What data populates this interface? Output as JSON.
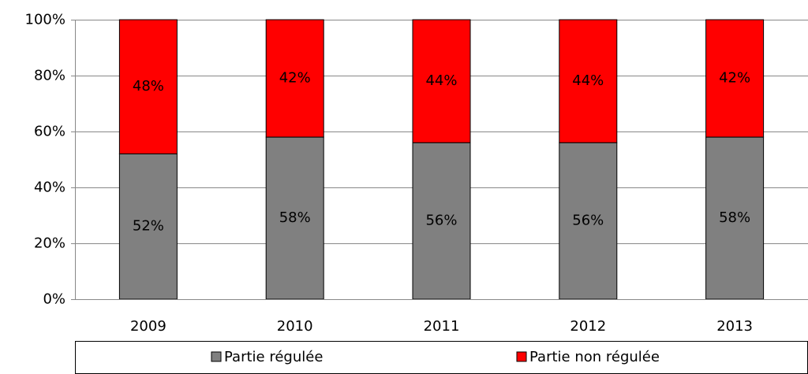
{
  "chart_data": {
    "type": "stacked_bar",
    "categories": [
      "2009",
      "2010",
      "2011",
      "2012",
      "2013"
    ],
    "series": [
      {
        "name": "Partie régulée",
        "color": "#808080",
        "values": [
          52,
          58,
          56,
          56,
          58
        ],
        "value_labels": [
          "52%",
          "58%",
          "56%",
          "56%",
          "58%"
        ]
      },
      {
        "name": "Partie non régulée",
        "color": "#ff0000",
        "values": [
          48,
          42,
          44,
          44,
          42
        ],
        "value_labels": [
          "48%",
          "42%",
          "44%",
          "44%",
          "42%"
        ]
      }
    ],
    "ylim": [
      0,
      100
    ],
    "yticks": [
      {
        "value": 0,
        "label": "0%"
      },
      {
        "value": 20,
        "label": "20%"
      },
      {
        "value": 40,
        "label": "40%"
      },
      {
        "value": 60,
        "label": "60%"
      },
      {
        "value": 80,
        "label": "80%"
      },
      {
        "value": 100,
        "label": "100%"
      }
    ],
    "grid": true,
    "legend": "bottom"
  }
}
